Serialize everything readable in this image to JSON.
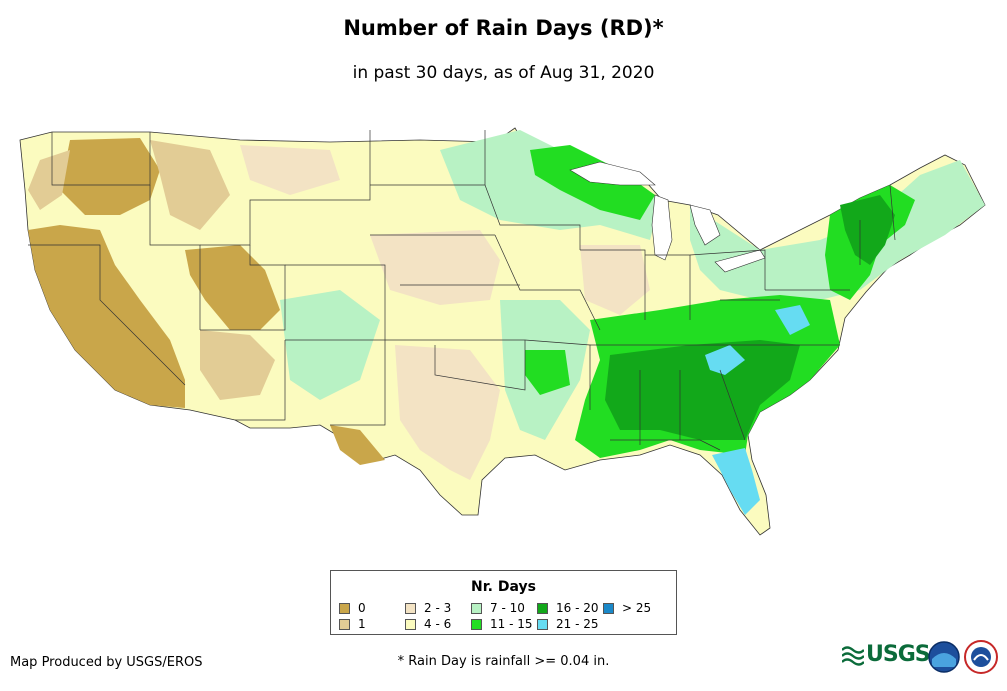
{
  "header": {
    "title": "Number of Rain Days (RD)*",
    "subtitle": "in past 30 days, as of Aug 31, 2020"
  },
  "legend": {
    "title": "Nr. Days",
    "items": [
      {
        "label": "0",
        "color": "#c9a64a"
      },
      {
        "label": "1",
        "color": "#e2cc95"
      },
      {
        "label": "2 - 3",
        "color": "#f3e3c4"
      },
      {
        "label": "4 - 6",
        "color": "#fbfbbf"
      },
      {
        "label": "7 - 10",
        "color": "#b8f2c4"
      },
      {
        "label": "11 - 15",
        "color": "#22dd22"
      },
      {
        "label": "16 - 20",
        "color": "#12a81a"
      },
      {
        "label": "21 - 25",
        "color": "#66dcf2"
      },
      {
        "label": "> 25",
        "color": "#1a88c8"
      }
    ]
  },
  "footer": {
    "credit": "Map Produced by USGS/EROS",
    "footnote": "* Rain Day is rainfall >= 0.04 in.",
    "usgs_logo": "USGS"
  },
  "map": {
    "region": "Contiguous United States",
    "colors": {
      "zero": "#c9a64a",
      "one": "#e2cc95",
      "two_three": "#f3e3c4",
      "four_six": "#fbfbbf",
      "seven_ten": "#b8f2c4",
      "eleven_fifteen": "#22dd22",
      "sixteen_twenty": "#12a81a",
      "twentyone_twentyfive": "#66dcf2"
    }
  }
}
